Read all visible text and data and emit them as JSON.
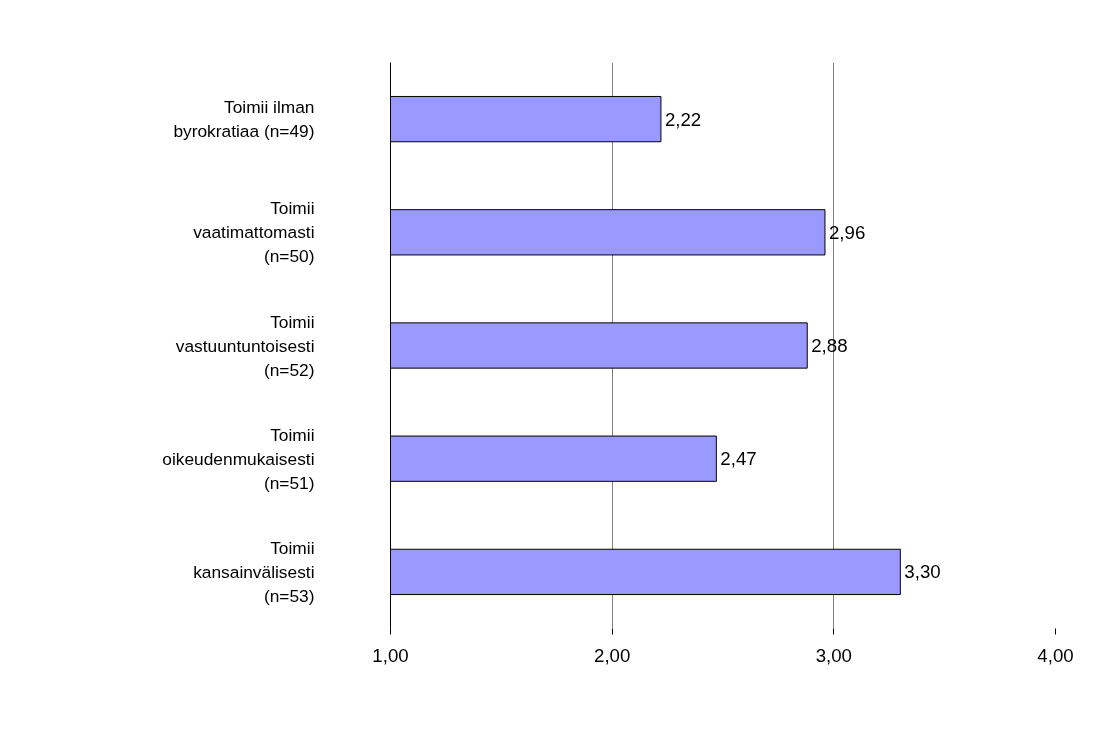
{
  "chart_data": {
    "type": "bar",
    "orientation": "horizontal",
    "categories": [
      "Toimii ilman byrokratiaa (n=49)",
      "Toimii vaatimattomasti (n=50)",
      "Toimii vastuuntuntoisesti (n=52)",
      "Toimii oikeudenmukaisesti (n=51)",
      "Toimii kansainvälisesti (n=53)"
    ],
    "values": [
      2.22,
      2.96,
      2.88,
      2.47,
      3.3
    ],
    "value_labels": [
      "2,22",
      "2,96",
      "2,88",
      "2,47",
      "3,30"
    ],
    "color": "#9999ff",
    "xlim": [
      1,
      4
    ],
    "xticks": [
      {
        "value": 1,
        "label": "1,00"
      },
      {
        "value": 2,
        "label": "2,00"
      },
      {
        "value": 3,
        "label": "3,00"
      },
      {
        "value": 4,
        "label": "4,00"
      }
    ],
    "grid": "x"
  }
}
